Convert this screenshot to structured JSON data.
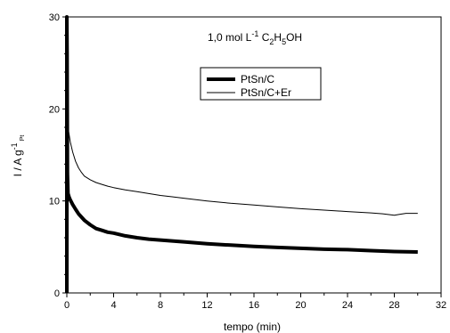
{
  "chart_data": {
    "type": "line",
    "title": "",
    "annotation": {
      "prefix": "1,0 mol L",
      "sup": "-1",
      "c": " C",
      "s2": "2",
      "h": "H",
      "s5": "5",
      "oh": "OH"
    },
    "xlabel": "tempo (min)",
    "ylabel": {
      "main": "I / A g",
      "sup": "-1",
      "sub": "Pt"
    },
    "xlim": [
      0,
      32
    ],
    "ylim": [
      0,
      30
    ],
    "xticks": [
      "0",
      "4",
      "8",
      "12",
      "16",
      "20",
      "24",
      "28",
      "32"
    ],
    "yticks": [
      "0",
      "10",
      "20",
      "30"
    ],
    "legend_position": "upper-right",
    "series": [
      {
        "name": "PtSn/C",
        "color": "#000000",
        "style": "thick",
        "x": [
          0,
          0,
          0.02,
          0.05,
          0.1,
          0.2,
          0.3,
          0.5,
          0.75,
          1,
          1.5,
          2,
          2.5,
          3,
          3.5,
          4,
          5,
          6,
          7,
          8,
          9,
          10,
          12,
          14,
          16,
          18,
          20,
          22,
          24,
          26,
          28,
          30
        ],
        "y": [
          0,
          30,
          26,
          13,
          10.8,
          10.4,
          10.1,
          9.6,
          9.1,
          8.6,
          7.9,
          7.4,
          7.0,
          6.8,
          6.6,
          6.5,
          6.2,
          6.0,
          5.85,
          5.75,
          5.65,
          5.55,
          5.35,
          5.2,
          5.05,
          4.95,
          4.85,
          4.75,
          4.7,
          4.6,
          4.5,
          4.45
        ]
      },
      {
        "name": "PtSn/C+Er",
        "color": "#000000",
        "style": "thin",
        "x": [
          0.05,
          0.1,
          0.2,
          0.3,
          0.5,
          0.75,
          1,
          1.25,
          1.5,
          2,
          2.5,
          3,
          3.5,
          4,
          5,
          6,
          7,
          8,
          9,
          10,
          12,
          14,
          16,
          18,
          20,
          22,
          24,
          26,
          27,
          28,
          28.5,
          29,
          30
        ],
        "y": [
          18.5,
          18.0,
          17.2,
          16.4,
          15.3,
          14.3,
          13.6,
          13.1,
          12.7,
          12.3,
          12.0,
          11.8,
          11.6,
          11.45,
          11.2,
          11.0,
          10.8,
          10.6,
          10.45,
          10.3,
          10.0,
          9.75,
          9.55,
          9.35,
          9.15,
          9.0,
          8.85,
          8.7,
          8.6,
          8.45,
          8.55,
          8.65,
          8.65
        ]
      }
    ]
  }
}
